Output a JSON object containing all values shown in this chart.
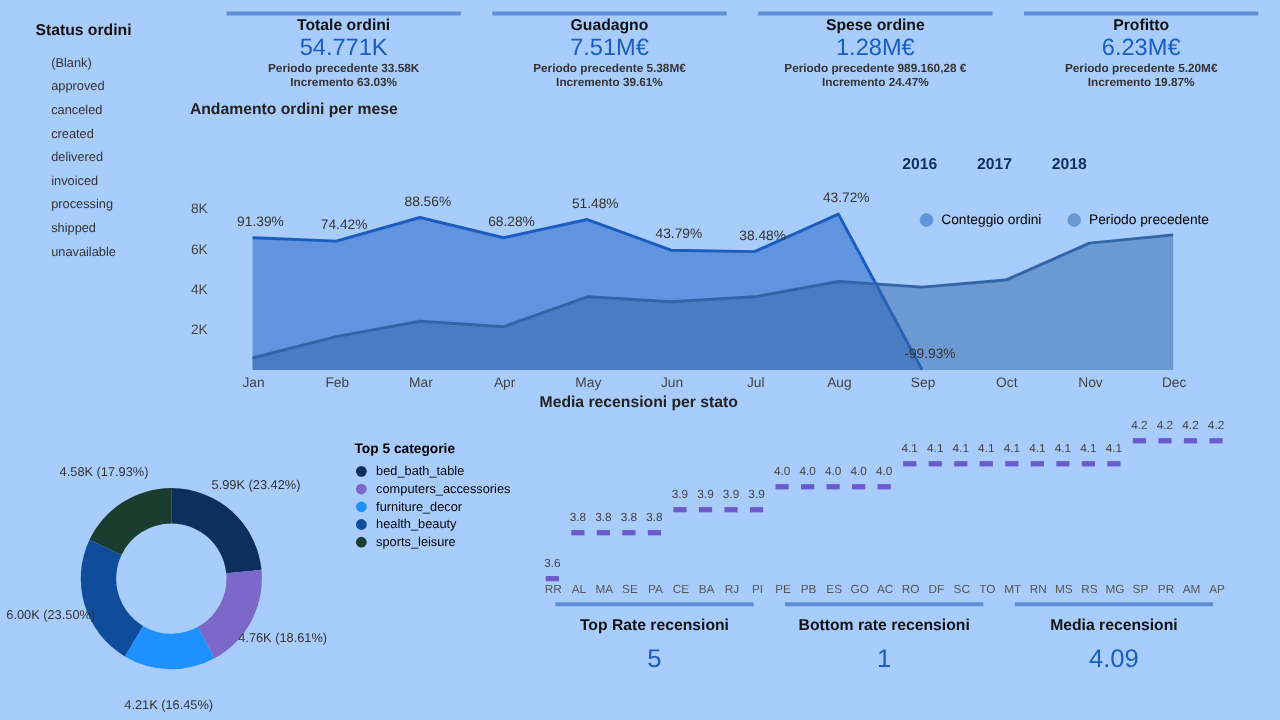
{
  "chart_data": [
    {
      "type": "other",
      "annotations": [
        "Totale ordini",
        "54.771K",
        "Periodo precedente 33.58K",
        "Incremento 63.03%",
        "Guadagno",
        "7.51M€",
        "Periodo precedente 5.38M€",
        "Incremento 39.61%",
        "Spese ordine",
        "1.28M€",
        "Periodo precedente 989.160,28 €",
        "Incremento 24.47%",
        "Profitto",
        "6.23M€",
        "Periodo precedente 5.20M€",
        "Incremento 19.87%"
      ]
    },
    {
      "type": "other",
      "title": "Status ordini",
      "annotations": [
        "(Blank)",
        "approved",
        "canceled",
        "created",
        "delivered",
        "invoiced",
        "processing",
        "shipped",
        "unavailable"
      ]
    },
    {
      "type": "area",
      "title": "Andamento ordini per mese",
      "categories": [
        "Jan",
        "Feb",
        "Mar",
        "Apr",
        "May",
        "Jun",
        "Jul",
        "Aug",
        "Sep",
        "Oct",
        "Nov",
        "Dec"
      ],
      "series": [
        {
          "name": "Conteggio ordini",
          "color": "#1a5cc0",
          "values": [
            6550,
            6380,
            7550,
            6550,
            7450,
            5930,
            5860,
            7720,
            0,
            null,
            null,
            null
          ]
        },
        {
          "name": "Periodo precedente",
          "color": "#3265a8",
          "values": [
            590,
            1650,
            2410,
            2140,
            3620,
            3380,
            3620,
            4380,
            4100,
            4450,
            6280,
            6690
          ]
        }
      ],
      "ylim": [
        0,
        8000
      ],
      "yticks": [
        {
          "value": 2000,
          "label": "2K"
        },
        {
          "value": 4000,
          "label": "4K"
        },
        {
          "value": 6000,
          "label": "6K"
        },
        {
          "value": 8000,
          "label": "8K"
        }
      ],
      "legend": "top right",
      "annotations": [
        "2016",
        "2017",
        "2018",
        {
          "text": "91.39%",
          "x": "Jan",
          "y": 6550
        },
        {
          "text": "74.42%",
          "x": "Feb",
          "y": 6380
        },
        {
          "text": "88.56%",
          "x": "Mar",
          "y": 7550
        },
        {
          "text": "68.28%",
          "x": "Apr",
          "y": 6550
        },
        {
          "text": "51.48%",
          "x": "May",
          "y": 7450
        },
        {
          "text": "43.79%",
          "x": "Jun",
          "y": 5930
        },
        {
          "text": "38.48%",
          "x": "Jul",
          "y": 5860
        },
        {
          "text": "43.72%",
          "x": "Aug",
          "y": 7720
        },
        {
          "text": "-99.93%",
          "x": "Sep",
          "y": 0
        }
      ]
    },
    {
      "type": "donut",
      "legend_title": "Top 5 categorie",
      "categories": [
        "bed_bath_table",
        "computers_accessories",
        "furniture_decor",
        "health_beauty",
        "sports_leisure"
      ],
      "values": [
        5990,
        4760,
        4210,
        6000,
        4580
      ],
      "colors": [
        "#0d2f5e",
        "#7b68c8",
        "#1e90ff",
        "#0f4c9c",
        "#1b3d2f"
      ],
      "value_labels": [
        "5.99K (23.42%)",
        "4.76K (18.61%)",
        "4.21K (16.45%)",
        "6.00K (23.50%)",
        "4.58K (17.93%)"
      ],
      "legend": "right"
    },
    {
      "type": "scatter",
      "title": "Media recensioni per stato",
      "categories": [
        "RR",
        "AL",
        "MA",
        "SE",
        "PA",
        "CE",
        "BA",
        "RJ",
        "PI",
        "PE",
        "PB",
        "ES",
        "GO",
        "AC",
        "RO",
        "DF",
        "SC",
        "TO",
        "MT",
        "RN",
        "MS",
        "RS",
        "MG",
        "SP",
        "PR",
        "AM",
        "AP"
      ],
      "values": [
        3.6,
        3.8,
        3.8,
        3.8,
        3.8,
        3.9,
        3.9,
        3.9,
        3.9,
        4.0,
        4.0,
        4.0,
        4.0,
        4.0,
        4.1,
        4.1,
        4.1,
        4.1,
        4.1,
        4.1,
        4.1,
        4.1,
        4.1,
        4.2,
        4.2,
        4.2,
        4.2
      ],
      "color": "#6a5acd",
      "value_labels": [
        "3.6",
        "3.8",
        "3.8",
        "3.8",
        "3.8",
        "3.9",
        "3.9",
        "3.9",
        "3.9",
        "4.0",
        "4.0",
        "4.0",
        "4.0",
        "4.0",
        "4.1",
        "4.1",
        "4.1",
        "4.1",
        "4.1",
        "4.1",
        "4.1",
        "4.1",
        "4.1",
        "4.2",
        "4.2",
        "4.2",
        "4.2"
      ],
      "tick_labels": "x"
    },
    {
      "type": "other",
      "annotations": [
        "Top Rate recensioni",
        "5",
        "Bottom rate recensioni",
        "1",
        "Media recensioni",
        "4.09"
      ]
    }
  ]
}
